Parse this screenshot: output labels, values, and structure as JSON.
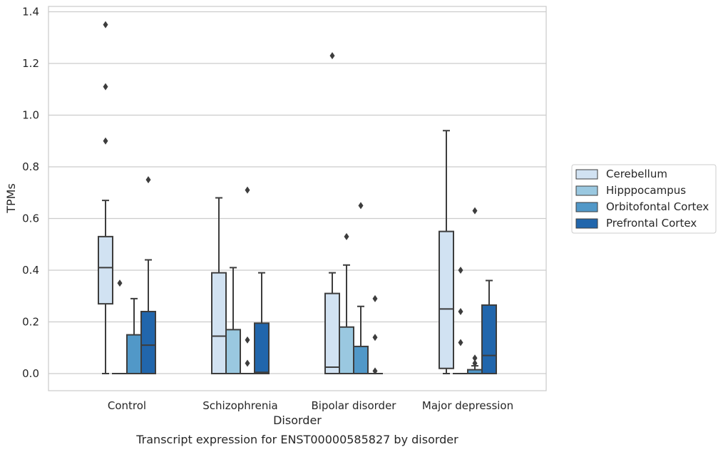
{
  "chart_data": {
    "type": "box",
    "title": "Transcript expression for ENST00000585827 by disorder",
    "xlabel": "Disorder",
    "ylabel": "TPMs",
    "ylim": [
      -0.065,
      1.42
    ],
    "yticks": [
      0.0,
      0.2,
      0.4,
      0.6,
      0.8,
      1.0,
      1.2,
      1.4
    ],
    "ytick_labels": [
      "0.0",
      "0.2",
      "0.4",
      "0.6",
      "0.8",
      "1.0",
      "1.2",
      "1.4"
    ],
    "grid": true,
    "legend_position": "right",
    "categories": [
      "Control",
      "Schizophrenia",
      "Bipolar disorder",
      "Major depression"
    ],
    "series": [
      {
        "name": "Cerebellum",
        "color": "#d1e2f2",
        "boxes": [
          {
            "whislo": 0.0,
            "q1": 0.27,
            "med": 0.41,
            "q3": 0.53,
            "whishi": 0.67,
            "fliers": [
              1.35,
              1.11,
              0.9
            ]
          },
          {
            "whislo": 0.0,
            "q1": 0.0,
            "med": 0.145,
            "q3": 0.39,
            "whishi": 0.68,
            "fliers": []
          },
          {
            "whislo": 0.0,
            "q1": 0.0,
            "med": 0.025,
            "q3": 0.31,
            "whishi": 0.39,
            "fliers": [
              1.23
            ]
          },
          {
            "whislo": 0.0,
            "q1": 0.02,
            "med": 0.25,
            "q3": 0.55,
            "whishi": 0.94,
            "fliers": []
          }
        ]
      },
      {
        "name": "Hipppocampus",
        "color": "#9ac8e0",
        "boxes": [
          {
            "whislo": 0.0,
            "q1": 0.0,
            "med": 0.0,
            "q3": 0.0,
            "whishi": 0.0,
            "fliers": [
              0.35
            ]
          },
          {
            "whislo": 0.0,
            "q1": 0.0,
            "med": 0.0,
            "q3": 0.17,
            "whishi": 0.41,
            "fliers": []
          },
          {
            "whislo": 0.0,
            "q1": 0.0,
            "med": 0.0,
            "q3": 0.18,
            "whishi": 0.42,
            "fliers": [
              0.53
            ]
          },
          {
            "whislo": 0.0,
            "q1": 0.0,
            "med": 0.0,
            "q3": 0.0,
            "whishi": 0.0,
            "fliers": [
              0.4,
              0.24,
              0.12
            ]
          }
        ]
      },
      {
        "name": "Orbitofontal Cortex",
        "color": "#5198c8",
        "boxes": [
          {
            "whislo": 0.0,
            "q1": 0.0,
            "med": 0.0,
            "q3": 0.15,
            "whishi": 0.29,
            "fliers": []
          },
          {
            "whislo": 0.0,
            "q1": 0.0,
            "med": 0.0,
            "q3": 0.0,
            "whishi": 0.0,
            "fliers": [
              0.71,
              0.13,
              0.04
            ]
          },
          {
            "whislo": 0.0,
            "q1": 0.0,
            "med": 0.0,
            "q3": 0.105,
            "whishi": 0.26,
            "fliers": [
              0.65
            ]
          },
          {
            "whislo": 0.0,
            "q1": 0.0,
            "med": 0.0,
            "q3": 0.015,
            "whishi": 0.03,
            "fliers": [
              0.63,
              0.06,
              0.04
            ]
          }
        ]
      },
      {
        "name": "Prefrontal Cortex",
        "color": "#2166ac",
        "boxes": [
          {
            "whislo": 0.0,
            "q1": 0.0,
            "med": 0.11,
            "q3": 0.24,
            "whishi": 0.44,
            "fliers": [
              0.75
            ]
          },
          {
            "whislo": 0.0,
            "q1": 0.0,
            "med": 0.005,
            "q3": 0.195,
            "whishi": 0.39,
            "fliers": []
          },
          {
            "whislo": 0.0,
            "q1": 0.0,
            "med": 0.0,
            "q3": 0.0,
            "whishi": 0.0,
            "fliers": [
              0.29,
              0.14,
              0.01
            ]
          },
          {
            "whislo": 0.0,
            "q1": 0.0,
            "med": 0.07,
            "q3": 0.265,
            "whishi": 0.36,
            "fliers": []
          }
        ]
      }
    ]
  }
}
